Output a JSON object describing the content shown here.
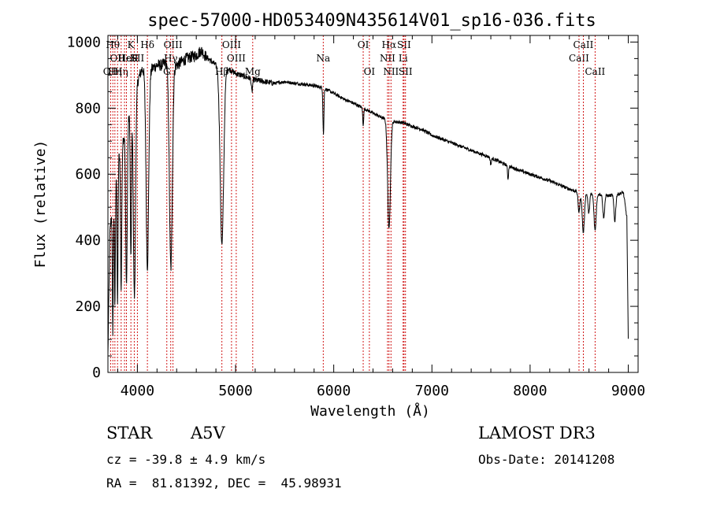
{
  "chart_data": {
    "type": "line",
    "title": "spec-57000-HD053409N435614V01_sp16-036.fits",
    "xlabel": "Wavelength (Å)",
    "ylabel": "Flux (relative)",
    "xlim": [
      3700,
      9100
    ],
    "ylim": [
      0,
      1020
    ],
    "x_ticks": [
      4000,
      5000,
      6000,
      7000,
      8000,
      9000
    ],
    "y_ticks": [
      0,
      200,
      400,
      600,
      800,
      1000
    ],
    "x_tick_labels": [
      "4000",
      "5000",
      "6000",
      "7000",
      "8000",
      "9000"
    ],
    "y_tick_labels": [
      "0",
      "200",
      "400",
      "600",
      "800",
      "1000"
    ],
    "series": [
      {
        "name": "spectrum",
        "continuum": [
          [
            3700,
            50
          ],
          [
            3720,
            420
          ],
          [
            3760,
            560
          ],
          [
            3800,
            640
          ],
          [
            3850,
            700
          ],
          [
            3900,
            760
          ],
          [
            3950,
            830
          ],
          [
            4000,
            880
          ],
          [
            4050,
            920
          ],
          [
            4100,
            900
          ],
          [
            4150,
            920
          ],
          [
            4200,
            930
          ],
          [
            4250,
            930
          ],
          [
            4300,
            940
          ],
          [
            4400,
            930
          ],
          [
            4500,
            950
          ],
          [
            4600,
            960
          ],
          [
            4650,
            975
          ],
          [
            4700,
            955
          ],
          [
            4800,
            930
          ],
          [
            4900,
            925
          ],
          [
            5000,
            905
          ],
          [
            5100,
            895
          ],
          [
            5200,
            885
          ],
          [
            5300,
            880
          ],
          [
            5400,
            875
          ],
          [
            5500,
            880
          ],
          [
            5600,
            875
          ],
          [
            5700,
            872
          ],
          [
            5800,
            868
          ],
          [
            5900,
            860
          ],
          [
            6000,
            845
          ],
          [
            6100,
            828
          ],
          [
            6200,
            815
          ],
          [
            6300,
            800
          ],
          [
            6400,
            785
          ],
          [
            6500,
            770
          ],
          [
            6600,
            760
          ],
          [
            6700,
            756
          ],
          [
            6800,
            745
          ],
          [
            6900,
            735
          ],
          [
            7000,
            718
          ],
          [
            7200,
            695
          ],
          [
            7400,
            672
          ],
          [
            7600,
            650
          ],
          [
            7800,
            622
          ],
          [
            8000,
            600
          ],
          [
            8200,
            580
          ],
          [
            8400,
            555
          ],
          [
            8500,
            545
          ],
          [
            8600,
            540
          ],
          [
            8700,
            540
          ],
          [
            8800,
            535
          ],
          [
            8900,
            540
          ],
          [
            8950,
            545
          ],
          [
            8985,
            470
          ],
          [
            9000,
            100
          ]
        ],
        "absorption_lines": [
          {
            "center": 3750,
            "depth": 400,
            "width": 5
          },
          {
            "center": 3771,
            "depth": 380,
            "width": 5
          },
          {
            "center": 3798,
            "depth": 420,
            "width": 5
          },
          {
            "center": 3835,
            "depth": 430,
            "width": 6
          },
          {
            "center": 3889,
            "depth": 480,
            "width": 8
          },
          {
            "center": 3934,
            "depth": 470,
            "width": 6
          },
          {
            "center": 3970,
            "depth": 620,
            "width": 11
          },
          {
            "center": 4102,
            "depth": 580,
            "width": 13
          },
          {
            "center": 4341,
            "depth": 620,
            "width": 15
          },
          {
            "center": 4861,
            "depth": 540,
            "width": 18
          },
          {
            "center": 5167,
            "depth": 40,
            "width": 6
          },
          {
            "center": 5895,
            "depth": 140,
            "width": 5
          },
          {
            "center": 6300,
            "depth": 50,
            "width": 5
          },
          {
            "center": 6563,
            "depth": 330,
            "width": 14
          },
          {
            "center": 7600,
            "depth": 20,
            "width": 6
          },
          {
            "center": 7775,
            "depth": 40,
            "width": 5
          },
          {
            "center": 8498,
            "depth": 60,
            "width": 9
          },
          {
            "center": 8542,
            "depth": 120,
            "width": 11
          },
          {
            "center": 8598,
            "depth": 60,
            "width": 8
          },
          {
            "center": 8662,
            "depth": 110,
            "width": 11
          },
          {
            "center": 8750,
            "depth": 70,
            "width": 9
          },
          {
            "center": 8863,
            "depth": 80,
            "width": 9
          }
        ]
      }
    ],
    "line_markers": [
      {
        "wavelength": 3727,
        "label": "OII",
        "row": 3
      },
      {
        "wavelength": 3750,
        "label": "Hθ",
        "row": 1
      },
      {
        "wavelength": 3771,
        "label": "Hη",
        "row": 3
      },
      {
        "wavelength": 3798,
        "label": "OII",
        "row": 2
      },
      {
        "wavelength": 3835,
        "label": "Hη",
        "row": 3
      },
      {
        "wavelength": 3869,
        "label": "Hε",
        "row": 2
      },
      {
        "wavelength": 3889,
        "label": "HeI",
        "row": 2
      },
      {
        "wavelength": 3934,
        "label": "K",
        "row": 1
      },
      {
        "wavelength": 3968,
        "label": "H",
        "row": 2
      },
      {
        "wavelength": 4000,
        "label": "SII",
        "row": 2
      },
      {
        "wavelength": 4102,
        "label": "Hδ",
        "row": 1
      },
      {
        "wavelength": 4300,
        "label": "G",
        "row": 3
      },
      {
        "wavelength": 4340,
        "label": "Hγ",
        "row": 2
      },
      {
        "wavelength": 4363,
        "label": "OIII",
        "row": 1
      },
      {
        "wavelength": 4861,
        "label": "Hβ",
        "row": 3
      },
      {
        "wavelength": 4959,
        "label": "OIII",
        "row": 1
      },
      {
        "wavelength": 5007,
        "label": "OIII",
        "row": 2
      },
      {
        "wavelength": 5175,
        "label": "Mg",
        "row": 3
      },
      {
        "wavelength": 5893,
        "label": "Na",
        "row": 2
      },
      {
        "wavelength": 6300,
        "label": "OI",
        "row": 1
      },
      {
        "wavelength": 6363,
        "label": "OI",
        "row": 3
      },
      {
        "wavelength": 6548,
        "label": "NII",
        "row": 2
      },
      {
        "wavelength": 6563,
        "label": "Hα",
        "row": 1
      },
      {
        "wavelength": 6583,
        "label": "NII",
        "row": 3
      },
      {
        "wavelength": 6707,
        "label": "Li",
        "row": 2
      },
      {
        "wavelength": 6716,
        "label": "SII",
        "row": 1
      },
      {
        "wavelength": 6731,
        "label": "SII",
        "row": 3
      },
      {
        "wavelength": 8498,
        "label": "CaII",
        "row": 2
      },
      {
        "wavelength": 8542,
        "label": "CaII",
        "row": 1
      },
      {
        "wavelength": 8662,
        "label": "CaII",
        "row": 3
      }
    ],
    "colors": {
      "spectrum": "#000000",
      "markers": "#cc0000",
      "axes": "#000000"
    }
  },
  "info": {
    "object_class": "STAR",
    "subclass": "A5V",
    "cz": "cz = -39.8 ± 4.9 km/s",
    "coords": "RA =  81.81392, DEC =  45.98931",
    "survey": "LAMOST DR3",
    "obs_date": "Obs-Date: 20141208"
  }
}
